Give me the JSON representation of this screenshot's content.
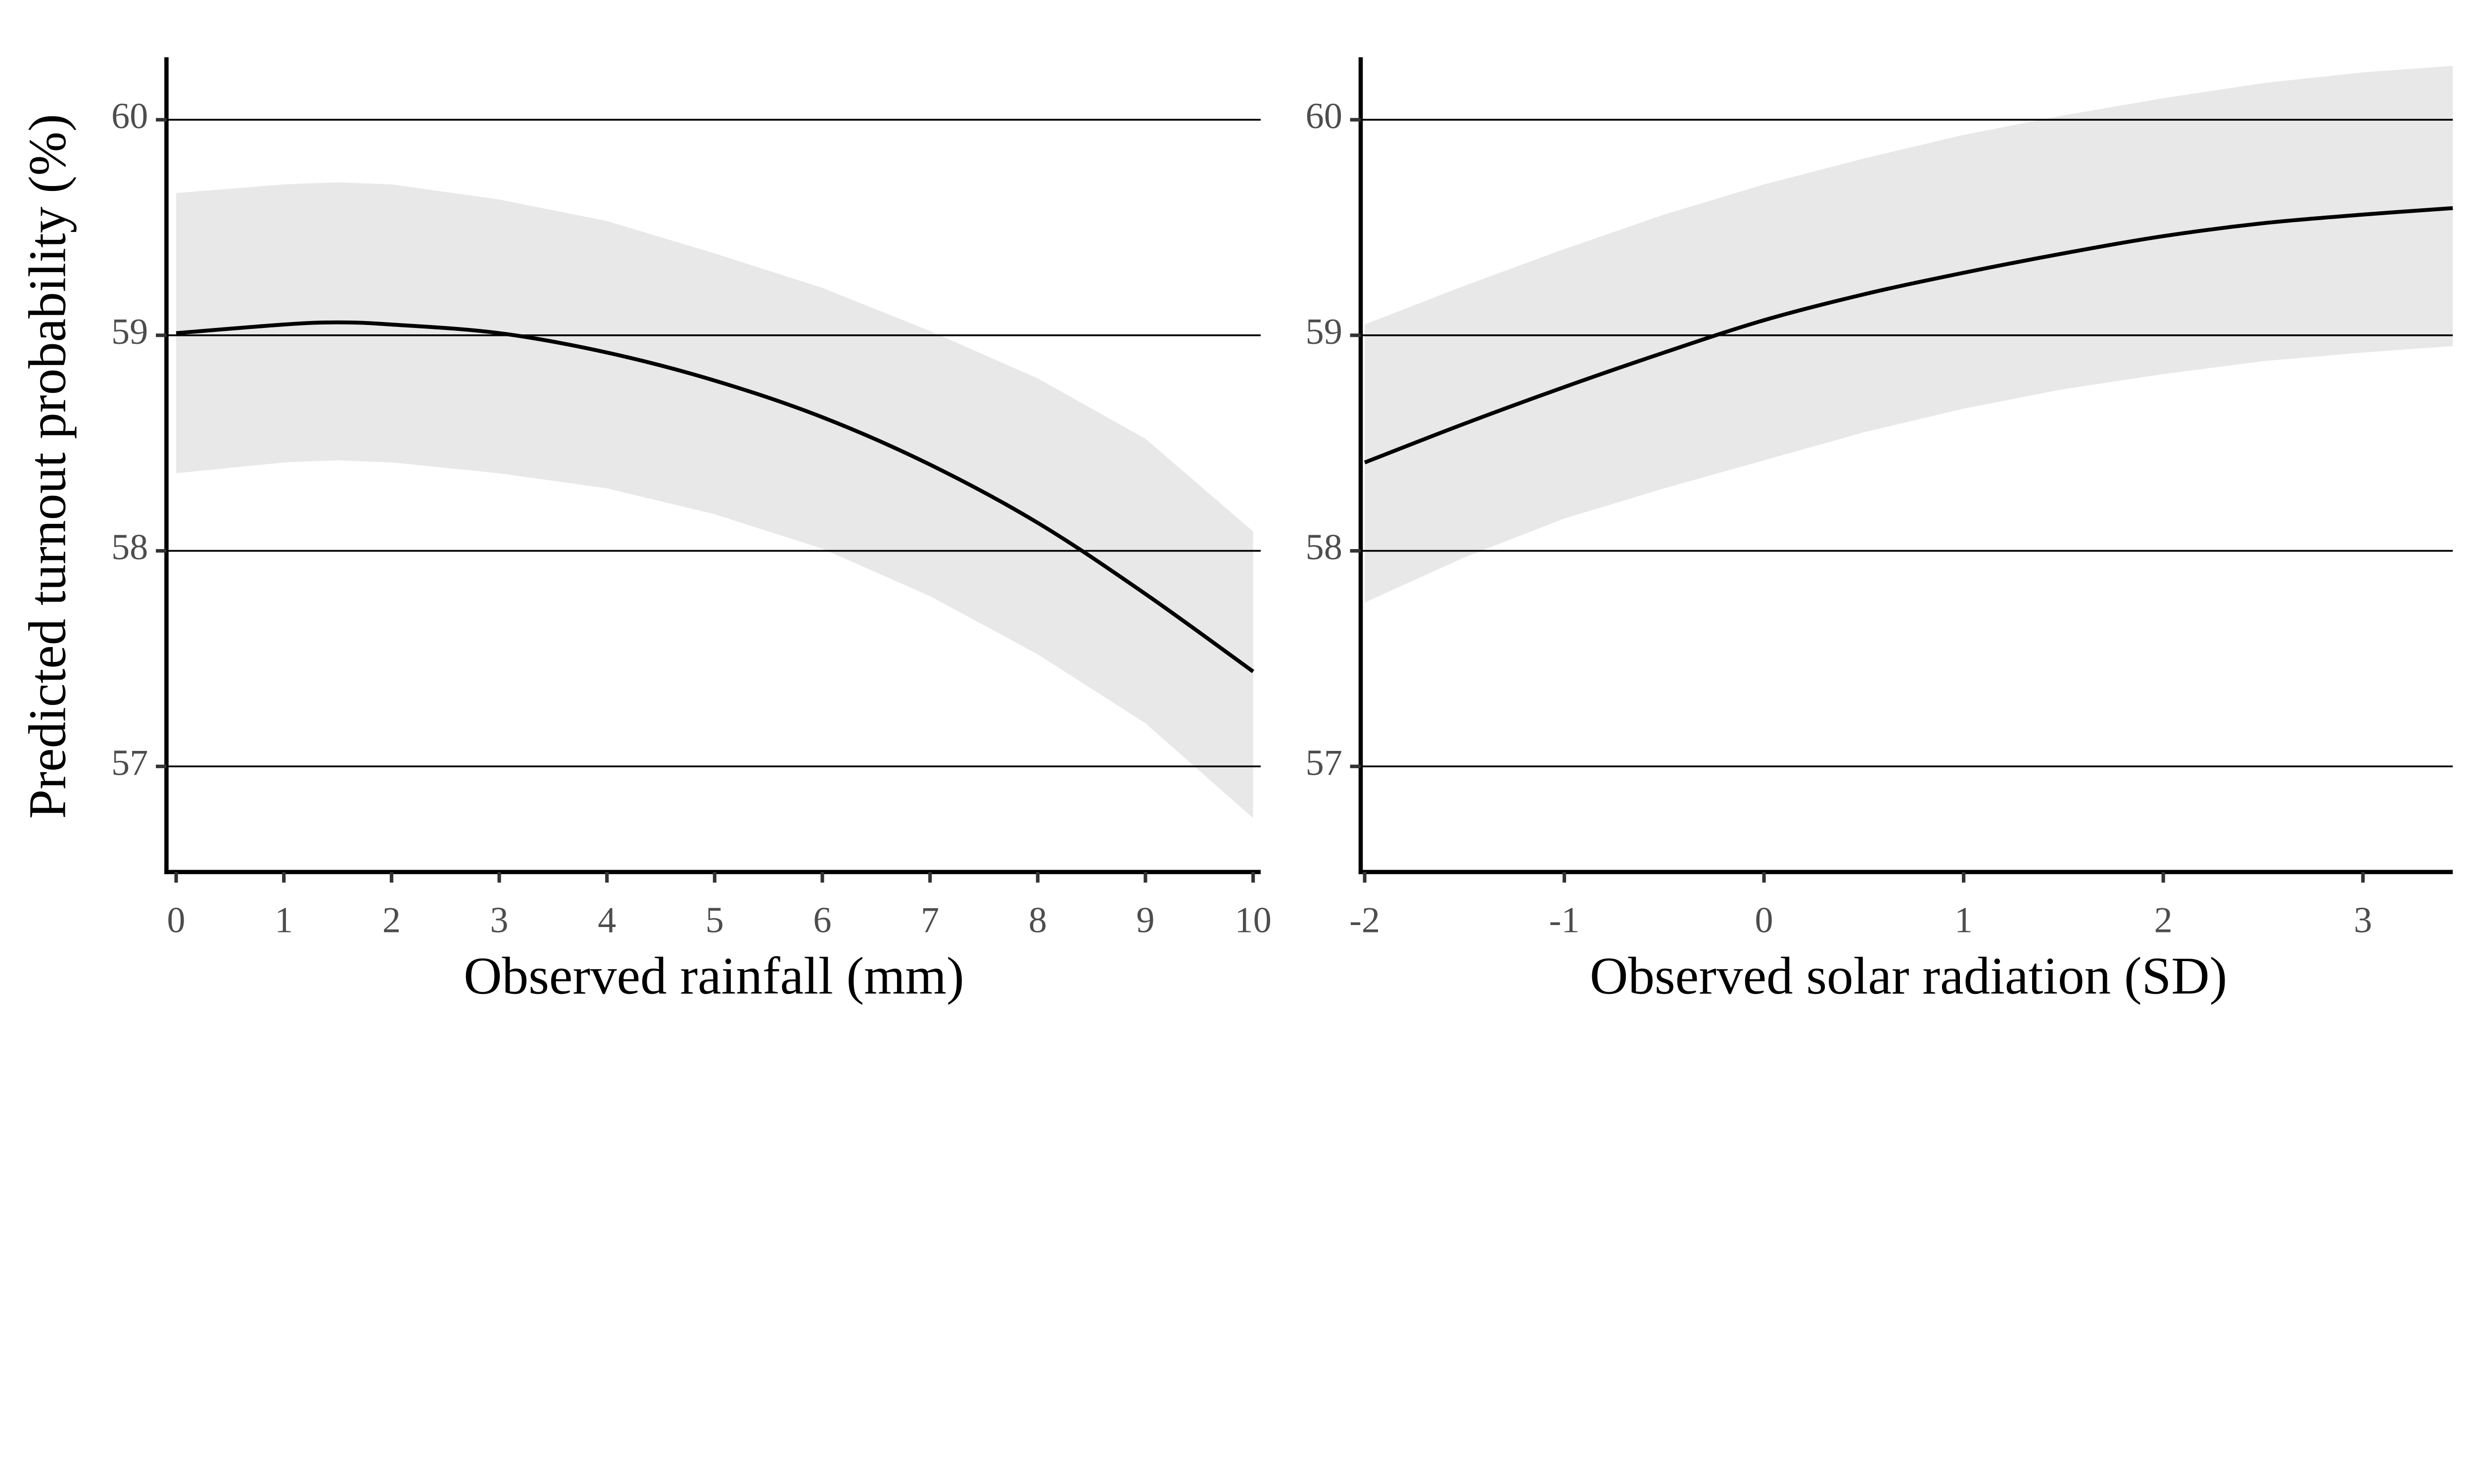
{
  "chart_data": [
    {
      "type": "line",
      "panel": "left",
      "xlabel": "Observed rainfall (mm)",
      "ylabel": "Predicted turnout probability (%)",
      "xlim": [
        -0.09,
        10.07
      ],
      "ylim": [
        56.51,
        60.29
      ],
      "xticks": [
        0,
        1,
        2,
        3,
        4,
        5,
        6,
        7,
        8,
        9,
        10
      ],
      "xtick_labels": [
        "0",
        "1",
        "2",
        "3",
        "4",
        "5",
        "6",
        "7",
        "8",
        "9",
        "10"
      ],
      "yticks": [
        57,
        58,
        59,
        60
      ],
      "ytick_labels": [
        "57",
        "58",
        "59",
        "60"
      ],
      "grid": "horizontal major",
      "series": [
        {
          "name": "prediction",
          "x": [
            0,
            1,
            1.5,
            2,
            3,
            4,
            5,
            6,
            7,
            8,
            9,
            10
          ],
          "y": [
            59.01,
            59.05,
            59.06,
            59.05,
            59.01,
            58.92,
            58.79,
            58.62,
            58.4,
            58.13,
            57.8,
            57.44
          ]
        },
        {
          "name": "ci_upper",
          "x": [
            0,
            1,
            1.5,
            2,
            3,
            4,
            5,
            6,
            7,
            8,
            9,
            10
          ],
          "y": [
            59.66,
            59.7,
            59.71,
            59.7,
            59.63,
            59.53,
            59.38,
            59.22,
            59.02,
            58.8,
            58.52,
            58.09
          ]
        },
        {
          "name": "ci_lower",
          "x": [
            0,
            1,
            1.5,
            2,
            3,
            4,
            5,
            6,
            7,
            8,
            9,
            10
          ],
          "y": [
            58.36,
            58.41,
            58.42,
            58.41,
            58.36,
            58.29,
            58.17,
            58.01,
            57.79,
            57.52,
            57.2,
            56.76
          ]
        }
      ]
    },
    {
      "type": "line",
      "panel": "right",
      "xlabel": "Observed solar radiation (SD)",
      "ylabel": "",
      "xlim": [
        -2.02,
        3.45
      ],
      "ylim": [
        56.51,
        60.29
      ],
      "xticks": [
        -2,
        -1,
        0,
        1,
        2,
        3
      ],
      "xtick_labels": [
        "-2",
        "-1",
        "0",
        "1",
        "2",
        "3"
      ],
      "yticks": [
        57,
        58,
        59,
        60
      ],
      "ytick_labels": [
        "57",
        "58",
        "59",
        "60"
      ],
      "grid": "horizontal major",
      "series": [
        {
          "name": "prediction",
          "x": [
            -2,
            -1.5,
            -1,
            -0.5,
            0,
            0.5,
            1,
            1.5,
            2,
            2.5,
            3,
            3.45
          ],
          "y": [
            58.41,
            58.59,
            58.76,
            58.92,
            59.07,
            59.19,
            59.29,
            59.38,
            59.46,
            59.52,
            59.56,
            59.59
          ]
        },
        {
          "name": "ci_upper",
          "x": [
            -2,
            -1.5,
            -1,
            -0.5,
            0,
            0.5,
            1,
            1.5,
            2,
            2.5,
            3,
            3.45
          ],
          "y": [
            59.05,
            59.23,
            59.4,
            59.56,
            59.7,
            59.82,
            59.93,
            60.02,
            60.1,
            60.17,
            60.22,
            60.25
          ]
        },
        {
          "name": "ci_lower",
          "x": [
            -2,
            -1.5,
            -1,
            -0.5,
            0,
            0.5,
            1,
            1.5,
            2,
            2.5,
            3,
            3.45
          ],
          "y": [
            57.76,
            57.97,
            58.15,
            58.29,
            58.42,
            58.55,
            58.66,
            58.75,
            58.82,
            58.88,
            58.92,
            58.95
          ]
        }
      ]
    }
  ],
  "colors": {
    "ribbon": "#e8e8e8",
    "line": "#000000",
    "grid": "#000000",
    "tick_text": "#4d4d4d"
  }
}
